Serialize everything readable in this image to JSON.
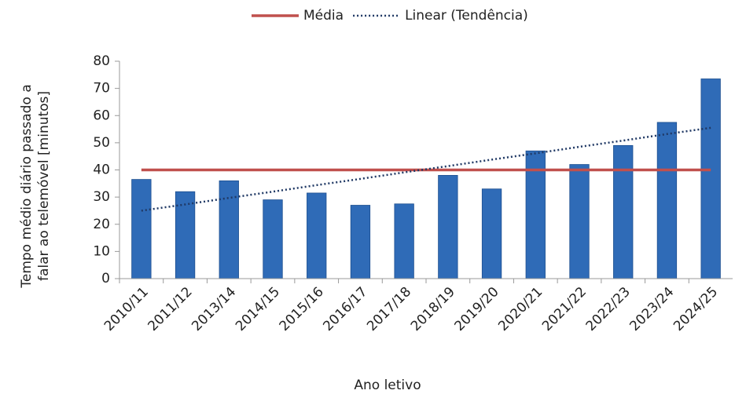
{
  "chart_data": {
    "type": "bar",
    "x_label": "Ano letivo",
    "y_label": "Tempo médio diário passado a falar ao telemóvel [minutos]",
    "categories": [
      "2010/11",
      "2011/12",
      "2013/14",
      "2014/15",
      "2015/16",
      "2016/17",
      "2017/18",
      "2018/19",
      "2019/20",
      "2020/21",
      "2021/22",
      "2022/23",
      "2023/24",
      "2024/25"
    ],
    "series": [
      {
        "type": "bar",
        "color": "#2f6bb7",
        "values": [
          36.5,
          32,
          36,
          29,
          31.5,
          27,
          27.5,
          38,
          33,
          47,
          42,
          49,
          57.5,
          73.5
        ]
      },
      {
        "type": "line",
        "name": "Média",
        "color": "#c0504d",
        "values": [
          40,
          40,
          40,
          40,
          40,
          40,
          40,
          40,
          40,
          40,
          40,
          40,
          40,
          40
        ]
      },
      {
        "type": "line",
        "name": "Linear (Tendência)",
        "color": "#1f3864",
        "dash": "dotted",
        "values": [
          25,
          27.3,
          29.7,
          32,
          34.4,
          36.7,
          39.1,
          41.4,
          43.8,
          46.1,
          48.5,
          50.8,
          53.2,
          55.5
        ]
      }
    ],
    "ylim": [
      0,
      80
    ],
    "yticks": [
      0,
      10,
      20,
      30,
      40,
      50,
      60,
      70,
      80
    ],
    "grid": false,
    "legend": "top"
  }
}
